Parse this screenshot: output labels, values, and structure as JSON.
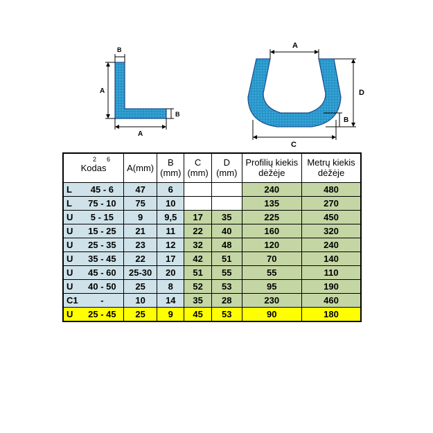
{
  "diagrams": {
    "l_profile": {
      "fill": "#2b9bce",
      "stroke": "#1a4d8f",
      "labels": {
        "A_v": "A",
        "A_h": "A",
        "B_top": "B",
        "B_right": "B"
      },
      "label_fontsize": 10
    },
    "u_profile": {
      "fill": "#2b9bce",
      "stroke": "#1a4d8f",
      "labels": {
        "A": "A",
        "B": "B",
        "C": "C",
        "D": "D"
      },
      "label_fontsize": 11
    }
  },
  "table": {
    "header": {
      "kodas": "Kodas",
      "kodas_sup": [
        "2",
        "6"
      ],
      "a": "A(mm)",
      "b": "B (mm)",
      "c": "C (mm)",
      "d": "D (mm)",
      "p": "Profilių kiekis dėžėje",
      "m": "Metrų kiekis dėžėje"
    },
    "colors": {
      "blue": "#cfe2e9",
      "green": "#c4d6a4",
      "yellow": "#ffff00",
      "white": "#ffffff",
      "border": "#000000",
      "text": "#000000"
    },
    "col_widths": {
      "kodas": 80,
      "a": 42,
      "b": 38,
      "c": 38,
      "d": 44,
      "p": 86,
      "m": 86
    },
    "rows": [
      {
        "code_l": "L",
        "code_r": "45 - 6",
        "a": "47",
        "b": "6",
        "c": "",
        "d": "",
        "p": "240",
        "m": "480",
        "bg": {
          "code": "blue",
          "a": "blue",
          "b": "blue",
          "c": "white",
          "d": "white",
          "p": "green",
          "m": "green"
        }
      },
      {
        "code_l": "L",
        "code_r": "75 - 10",
        "a": "75",
        "b": "10",
        "c": "",
        "d": "",
        "p": "135",
        "m": "270",
        "bg": {
          "code": "blue",
          "a": "blue",
          "b": "blue",
          "c": "white",
          "d": "white",
          "p": "green",
          "m": "green"
        }
      },
      {
        "code_l": "U",
        "code_r": "5 - 15",
        "a": "9",
        "b": "9,5",
        "c": "17",
        "d": "35",
        "p": "225",
        "m": "450",
        "bg": {
          "code": "blue",
          "a": "blue",
          "b": "blue",
          "c": "green",
          "d": "green",
          "p": "green",
          "m": "green"
        }
      },
      {
        "code_l": "U",
        "code_r": "15 - 25",
        "a": "21",
        "b": "11",
        "c": "22",
        "d": "40",
        "p": "160",
        "m": "320",
        "bg": {
          "code": "blue",
          "a": "blue",
          "b": "blue",
          "c": "green",
          "d": "green",
          "p": "green",
          "m": "green"
        }
      },
      {
        "code_l": "U",
        "code_r": "25 - 35",
        "a": "23",
        "b": "12",
        "c": "32",
        "d": "48",
        "p": "120",
        "m": "240",
        "bg": {
          "code": "blue",
          "a": "blue",
          "b": "blue",
          "c": "green",
          "d": "green",
          "p": "green",
          "m": "green"
        }
      },
      {
        "code_l": "U",
        "code_r": "35 - 45",
        "a": "22",
        "b": "17",
        "c": "42",
        "d": "51",
        "p": "70",
        "m": "140",
        "bg": {
          "code": "blue",
          "a": "blue",
          "b": "blue",
          "c": "green",
          "d": "green",
          "p": "green",
          "m": "green"
        }
      },
      {
        "code_l": "U",
        "code_r": "45 - 60",
        "a": "25-30",
        "b": "20",
        "c": "51",
        "d": "55",
        "p": "55",
        "m": "110",
        "bg": {
          "code": "blue",
          "a": "blue",
          "b": "blue",
          "c": "green",
          "d": "green",
          "p": "green",
          "m": "green"
        }
      },
      {
        "code_l": "U",
        "code_r": "40 - 50",
        "a": "25",
        "b": "8",
        "c": "52",
        "d": "53",
        "p": "95",
        "m": "190",
        "bg": {
          "code": "blue",
          "a": "blue",
          "b": "blue",
          "c": "green",
          "d": "green",
          "p": "green",
          "m": "green"
        }
      },
      {
        "code_l": "C1",
        "code_r": "-",
        "a": "10",
        "b": "14",
        "c": "35",
        "d": "28",
        "p": "230",
        "m": "460",
        "bg": {
          "code": "blue",
          "a": "blue",
          "b": "blue",
          "c": "green",
          "d": "green",
          "p": "green",
          "m": "green"
        }
      },
      {
        "code_l": "U",
        "code_r": "25 - 45",
        "a": "25",
        "b": "9",
        "c": "45",
        "d": "53",
        "p": "90",
        "m": "180",
        "bg": {
          "code": "yellow",
          "a": "yellow",
          "b": "yellow",
          "c": "yellow",
          "d": "yellow",
          "p": "yellow",
          "m": "yellow"
        }
      }
    ]
  }
}
